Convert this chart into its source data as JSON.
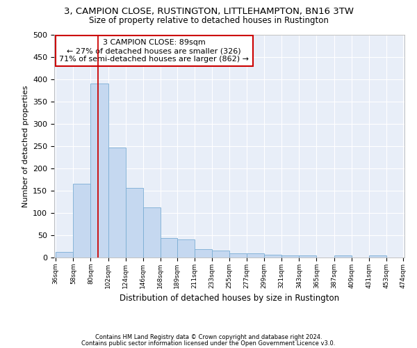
{
  "title_line1": "3, CAMPION CLOSE, RUSTINGTON, LITTLEHAMPTON, BN16 3TW",
  "title_line2": "Size of property relative to detached houses in Rustington",
  "xlabel": "Distribution of detached houses by size in Rustington",
  "ylabel": "Number of detached properties",
  "bar_edges": [
    36,
    58,
    80,
    102,
    124,
    146,
    168,
    189,
    211,
    233,
    255,
    277,
    299,
    321,
    343,
    365,
    387,
    409,
    431,
    453,
    474
  ],
  "bar_heights": [
    13,
    165,
    390,
    247,
    157,
    113,
    44,
    40,
    18,
    15,
    9,
    9,
    6,
    5,
    4,
    0,
    5,
    0,
    5,
    0
  ],
  "bar_color": "#c5d8f0",
  "bar_edge_color": "#7aadd4",
  "property_size": 89,
  "annotation_text": "3 CAMPION CLOSE: 89sqm\n← 27% of detached houses are smaller (326)\n71% of semi-detached houses are larger (862) →",
  "annotation_box_color": "#ffffff",
  "annotation_box_edge_color": "#cc0000",
  "vline_color": "#cc0000",
  "ylim": [
    0,
    500
  ],
  "yticks": [
    0,
    50,
    100,
    150,
    200,
    250,
    300,
    350,
    400,
    450,
    500
  ],
  "footer_line1": "Contains HM Land Registry data © Crown copyright and database right 2024.",
  "footer_line2": "Contains public sector information licensed under the Open Government Licence v3.0.",
  "bg_color": "#e8eef8",
  "grid_color": "#ffffff",
  "tick_labels": [
    "36sqm",
    "58sqm",
    "80sqm",
    "102sqm",
    "124sqm",
    "146sqm",
    "168sqm",
    "189sqm",
    "211sqm",
    "233sqm",
    "255sqm",
    "277sqm",
    "299sqm",
    "321sqm",
    "343sqm",
    "365sqm",
    "387sqm",
    "409sqm",
    "431sqm",
    "453sqm",
    "474sqm"
  ]
}
